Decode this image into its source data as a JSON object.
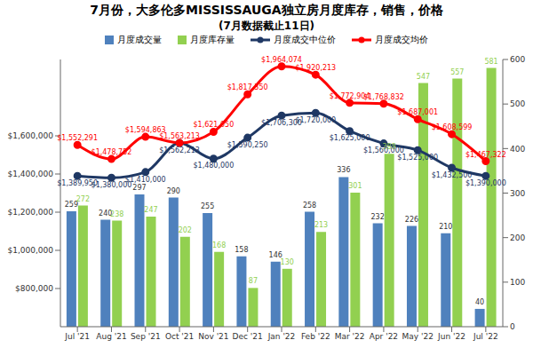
{
  "chart_data": {
    "type": "combo",
    "title": "7月份，大多伦多MISSISSAUGA独立房月度库存，销售，价格",
    "subtitle": "(7月数据截止11日)",
    "categories": [
      "Jul '21",
      "Aug '21",
      "Sep '21",
      "Oct '21",
      "Nov '21",
      "Dec '21",
      "Jan '22",
      "Feb '22",
      "Mar '22",
      "Apr '22",
      "May '22",
      "Jun '22",
      "Jul '22"
    ],
    "series": [
      {
        "name": "月度成交量",
        "type": "bar",
        "color": "#4f81bd",
        "axis": "y2",
        "values": [
          259,
          240,
          297,
          290,
          255,
          158,
          146,
          258,
          336,
          232,
          226,
          210,
          40
        ]
      },
      {
        "name": "月度库存量",
        "type": "bar",
        "color": "#92d050",
        "axis": "y2",
        "values": [
          272,
          238,
          247,
          202,
          168,
          87,
          130,
          213,
          301,
          388,
          547,
          557,
          581
        ]
      },
      {
        "name": "月度成交中位价",
        "type": "line",
        "color": "#1f3864",
        "marker": "circle",
        "values": [
          1389950,
          1380000,
          1410000,
          1562213,
          1480000,
          1590250,
          1706300,
          1720000,
          1625000,
          1560000,
          1525000,
          1432500,
          1390000
        ],
        "value_labels": [
          "$1,389,950",
          "$1,380,000",
          "$1,410,000",
          "$1,562,213",
          "$1,480,000",
          "$1,590,250",
          "$1,706,300",
          "$1,720,000",
          "$1,625,000",
          "$1,560,000",
          "$1,525,000",
          "$1,432,500",
          "$1,390,000"
        ]
      },
      {
        "name": "月度成交均价",
        "type": "line",
        "color": "#ff0000",
        "marker": "circle",
        "values": [
          1552291,
          1478752,
          1594863,
          1563213,
          1621050,
          1817350,
          1964074,
          1920213,
          1772904,
          1768832,
          1687001,
          1608599,
          1467322
        ],
        "value_labels": [
          "$1,552,291",
          "$1,478,752",
          "$1,594,863",
          "$1,563,213",
          "$1,621,050",
          "$1,817,350",
          "$1,964,074",
          "$1,920,213",
          "$1,772,904",
          "$1,768,832",
          "$1,687,001",
          "$1,608,599",
          "$1,467,322"
        ]
      }
    ],
    "ylim": [
      600000,
      2000000
    ],
    "yticks": [
      {
        "value": 800000,
        "label": "$800,000"
      },
      {
        "value": 1000000,
        "label": "$1,000,000"
      },
      {
        "value": 1200000,
        "label": "$1,200,000"
      },
      {
        "value": 1400000,
        "label": "$1,400,000"
      },
      {
        "value": 1600000,
        "label": "$1,600,000"
      }
    ],
    "y2lim": [
      0,
      600
    ],
    "y2ticks": [
      0,
      100,
      200,
      300,
      400,
      500,
      600
    ],
    "data_labels": true,
    "grid": false,
    "legend": "top"
  }
}
